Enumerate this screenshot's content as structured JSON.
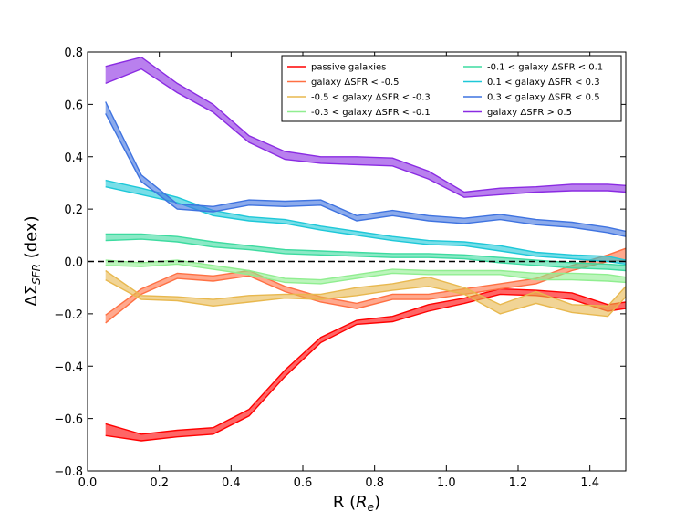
{
  "chart_data": {
    "type": "line",
    "title": "",
    "xlabel": "R (Re)",
    "ylabel": "ΔΣSFR (dex)",
    "xlim": [
      0.0,
      1.5
    ],
    "ylim": [
      -0.8,
      0.8
    ],
    "x_ticks": [
      0.0,
      0.2,
      0.4,
      0.6,
      0.8,
      1.0,
      1.2,
      1.4
    ],
    "x_tick_labels": [
      "0.0",
      "0.2",
      "0.4",
      "0.6",
      "0.8",
      "1.0",
      "1.2",
      "1.4"
    ],
    "y_ticks": [
      -0.8,
      -0.6,
      -0.4,
      -0.2,
      0.0,
      0.2,
      0.4,
      0.6,
      0.8
    ],
    "y_tick_labels": [
      "−0.8",
      "−0.6",
      "−0.4",
      "−0.2",
      "0.0",
      "0.2",
      "0.4",
      "0.6",
      "0.8"
    ],
    "reference_line": {
      "y": 0.0,
      "style": "dashed",
      "color": "#000000"
    },
    "legend_position": "top-right",
    "x": [
      0.05,
      0.15,
      0.25,
      0.35,
      0.45,
      0.55,
      0.65,
      0.75,
      0.85,
      0.95,
      1.05,
      1.15,
      1.25,
      1.35,
      1.45,
      1.5
    ],
    "series": [
      {
        "name": "passive galaxies",
        "color": "#ff0000",
        "upper": [
          -0.62,
          -0.66,
          -0.645,
          -0.635,
          -0.565,
          -0.415,
          -0.29,
          -0.225,
          -0.21,
          -0.165,
          -0.14,
          -0.105,
          -0.11,
          -0.12,
          -0.165,
          -0.155
        ],
        "lower": [
          -0.665,
          -0.685,
          -0.67,
          -0.66,
          -0.59,
          -0.44,
          -0.31,
          -0.24,
          -0.23,
          -0.19,
          -0.16,
          -0.125,
          -0.13,
          -0.145,
          -0.19,
          -0.18
        ]
      },
      {
        "name": "galaxy ΔSFR < -0.5",
        "color": "#ff7043",
        "upper": [
          -0.205,
          -0.105,
          -0.045,
          -0.055,
          -0.035,
          -0.095,
          -0.135,
          -0.16,
          -0.125,
          -0.125,
          -0.105,
          -0.085,
          -0.065,
          -0.015,
          0.025,
          0.05
        ],
        "lower": [
          -0.235,
          -0.125,
          -0.065,
          -0.075,
          -0.055,
          -0.115,
          -0.155,
          -0.18,
          -0.145,
          -0.145,
          -0.125,
          -0.105,
          -0.085,
          -0.035,
          0.0,
          0.005
        ]
      },
      {
        "name": "-0.5 < galaxy ΔSFR < -0.3",
        "color": "#e8b84e",
        "upper": [
          -0.035,
          -0.13,
          -0.135,
          -0.145,
          -0.13,
          -0.125,
          -0.125,
          -0.1,
          -0.085,
          -0.06,
          -0.1,
          -0.165,
          -0.115,
          -0.165,
          -0.17,
          -0.095
        ],
        "lower": [
          -0.07,
          -0.145,
          -0.15,
          -0.17,
          -0.155,
          -0.14,
          -0.145,
          -0.13,
          -0.11,
          -0.095,
          -0.125,
          -0.2,
          -0.16,
          -0.195,
          -0.21,
          -0.135
        ]
      },
      {
        "name": "-0.3 < galaxy ΔSFR < -0.1",
        "color": "#90ee90",
        "upper": [
          0.005,
          -0.005,
          0.005,
          -0.015,
          -0.035,
          -0.065,
          -0.07,
          -0.05,
          -0.03,
          -0.035,
          -0.035,
          -0.035,
          -0.045,
          -0.045,
          -0.05,
          -0.06
        ],
        "lower": [
          -0.015,
          -0.02,
          -0.01,
          -0.03,
          -0.05,
          -0.08,
          -0.085,
          -0.065,
          -0.045,
          -0.05,
          -0.05,
          -0.05,
          -0.07,
          -0.07,
          -0.075,
          -0.08
        ]
      },
      {
        "name": "-0.1 < galaxy ΔSFR < 0.1",
        "color": "#3ddba0",
        "upper": [
          0.105,
          0.105,
          0.095,
          0.075,
          0.06,
          0.045,
          0.04,
          0.035,
          0.03,
          0.03,
          0.025,
          0.015,
          0.005,
          -0.005,
          -0.01,
          -0.015
        ],
        "lower": [
          0.08,
          0.085,
          0.075,
          0.055,
          0.045,
          0.03,
          0.025,
          0.02,
          0.015,
          0.015,
          0.01,
          -0.005,
          -0.015,
          -0.025,
          -0.03,
          -0.035
        ]
      },
      {
        "name": "0.1 < galaxy ΔSFR < 0.3",
        "color": "#1ec8d8",
        "upper": [
          0.31,
          0.28,
          0.245,
          0.195,
          0.17,
          0.16,
          0.135,
          0.115,
          0.095,
          0.08,
          0.075,
          0.06,
          0.035,
          0.025,
          0.02,
          0.005
        ],
        "lower": [
          0.285,
          0.255,
          0.225,
          0.175,
          0.155,
          0.145,
          0.12,
          0.1,
          0.08,
          0.065,
          0.06,
          0.04,
          0.02,
          0.01,
          0.0,
          -0.01
        ]
      },
      {
        "name": "0.3 < galaxy ΔSFR < 0.5",
        "color": "#3f73e0",
        "upper": [
          0.61,
          0.33,
          0.22,
          0.21,
          0.235,
          0.23,
          0.235,
          0.175,
          0.195,
          0.175,
          0.165,
          0.18,
          0.16,
          0.15,
          0.13,
          0.115
        ],
        "lower": [
          0.565,
          0.305,
          0.2,
          0.19,
          0.215,
          0.21,
          0.215,
          0.155,
          0.175,
          0.155,
          0.145,
          0.16,
          0.14,
          0.13,
          0.11,
          0.095
        ]
      },
      {
        "name": "galaxy ΔSFR > 0.5",
        "color": "#8a2be2",
        "upper": [
          0.745,
          0.78,
          0.68,
          0.6,
          0.48,
          0.42,
          0.4,
          0.4,
          0.395,
          0.345,
          0.265,
          0.28,
          0.285,
          0.295,
          0.295,
          0.29
        ],
        "lower": [
          0.68,
          0.735,
          0.645,
          0.57,
          0.455,
          0.39,
          0.375,
          0.37,
          0.365,
          0.315,
          0.245,
          0.255,
          0.265,
          0.27,
          0.27,
          0.265
        ]
      }
    ]
  }
}
